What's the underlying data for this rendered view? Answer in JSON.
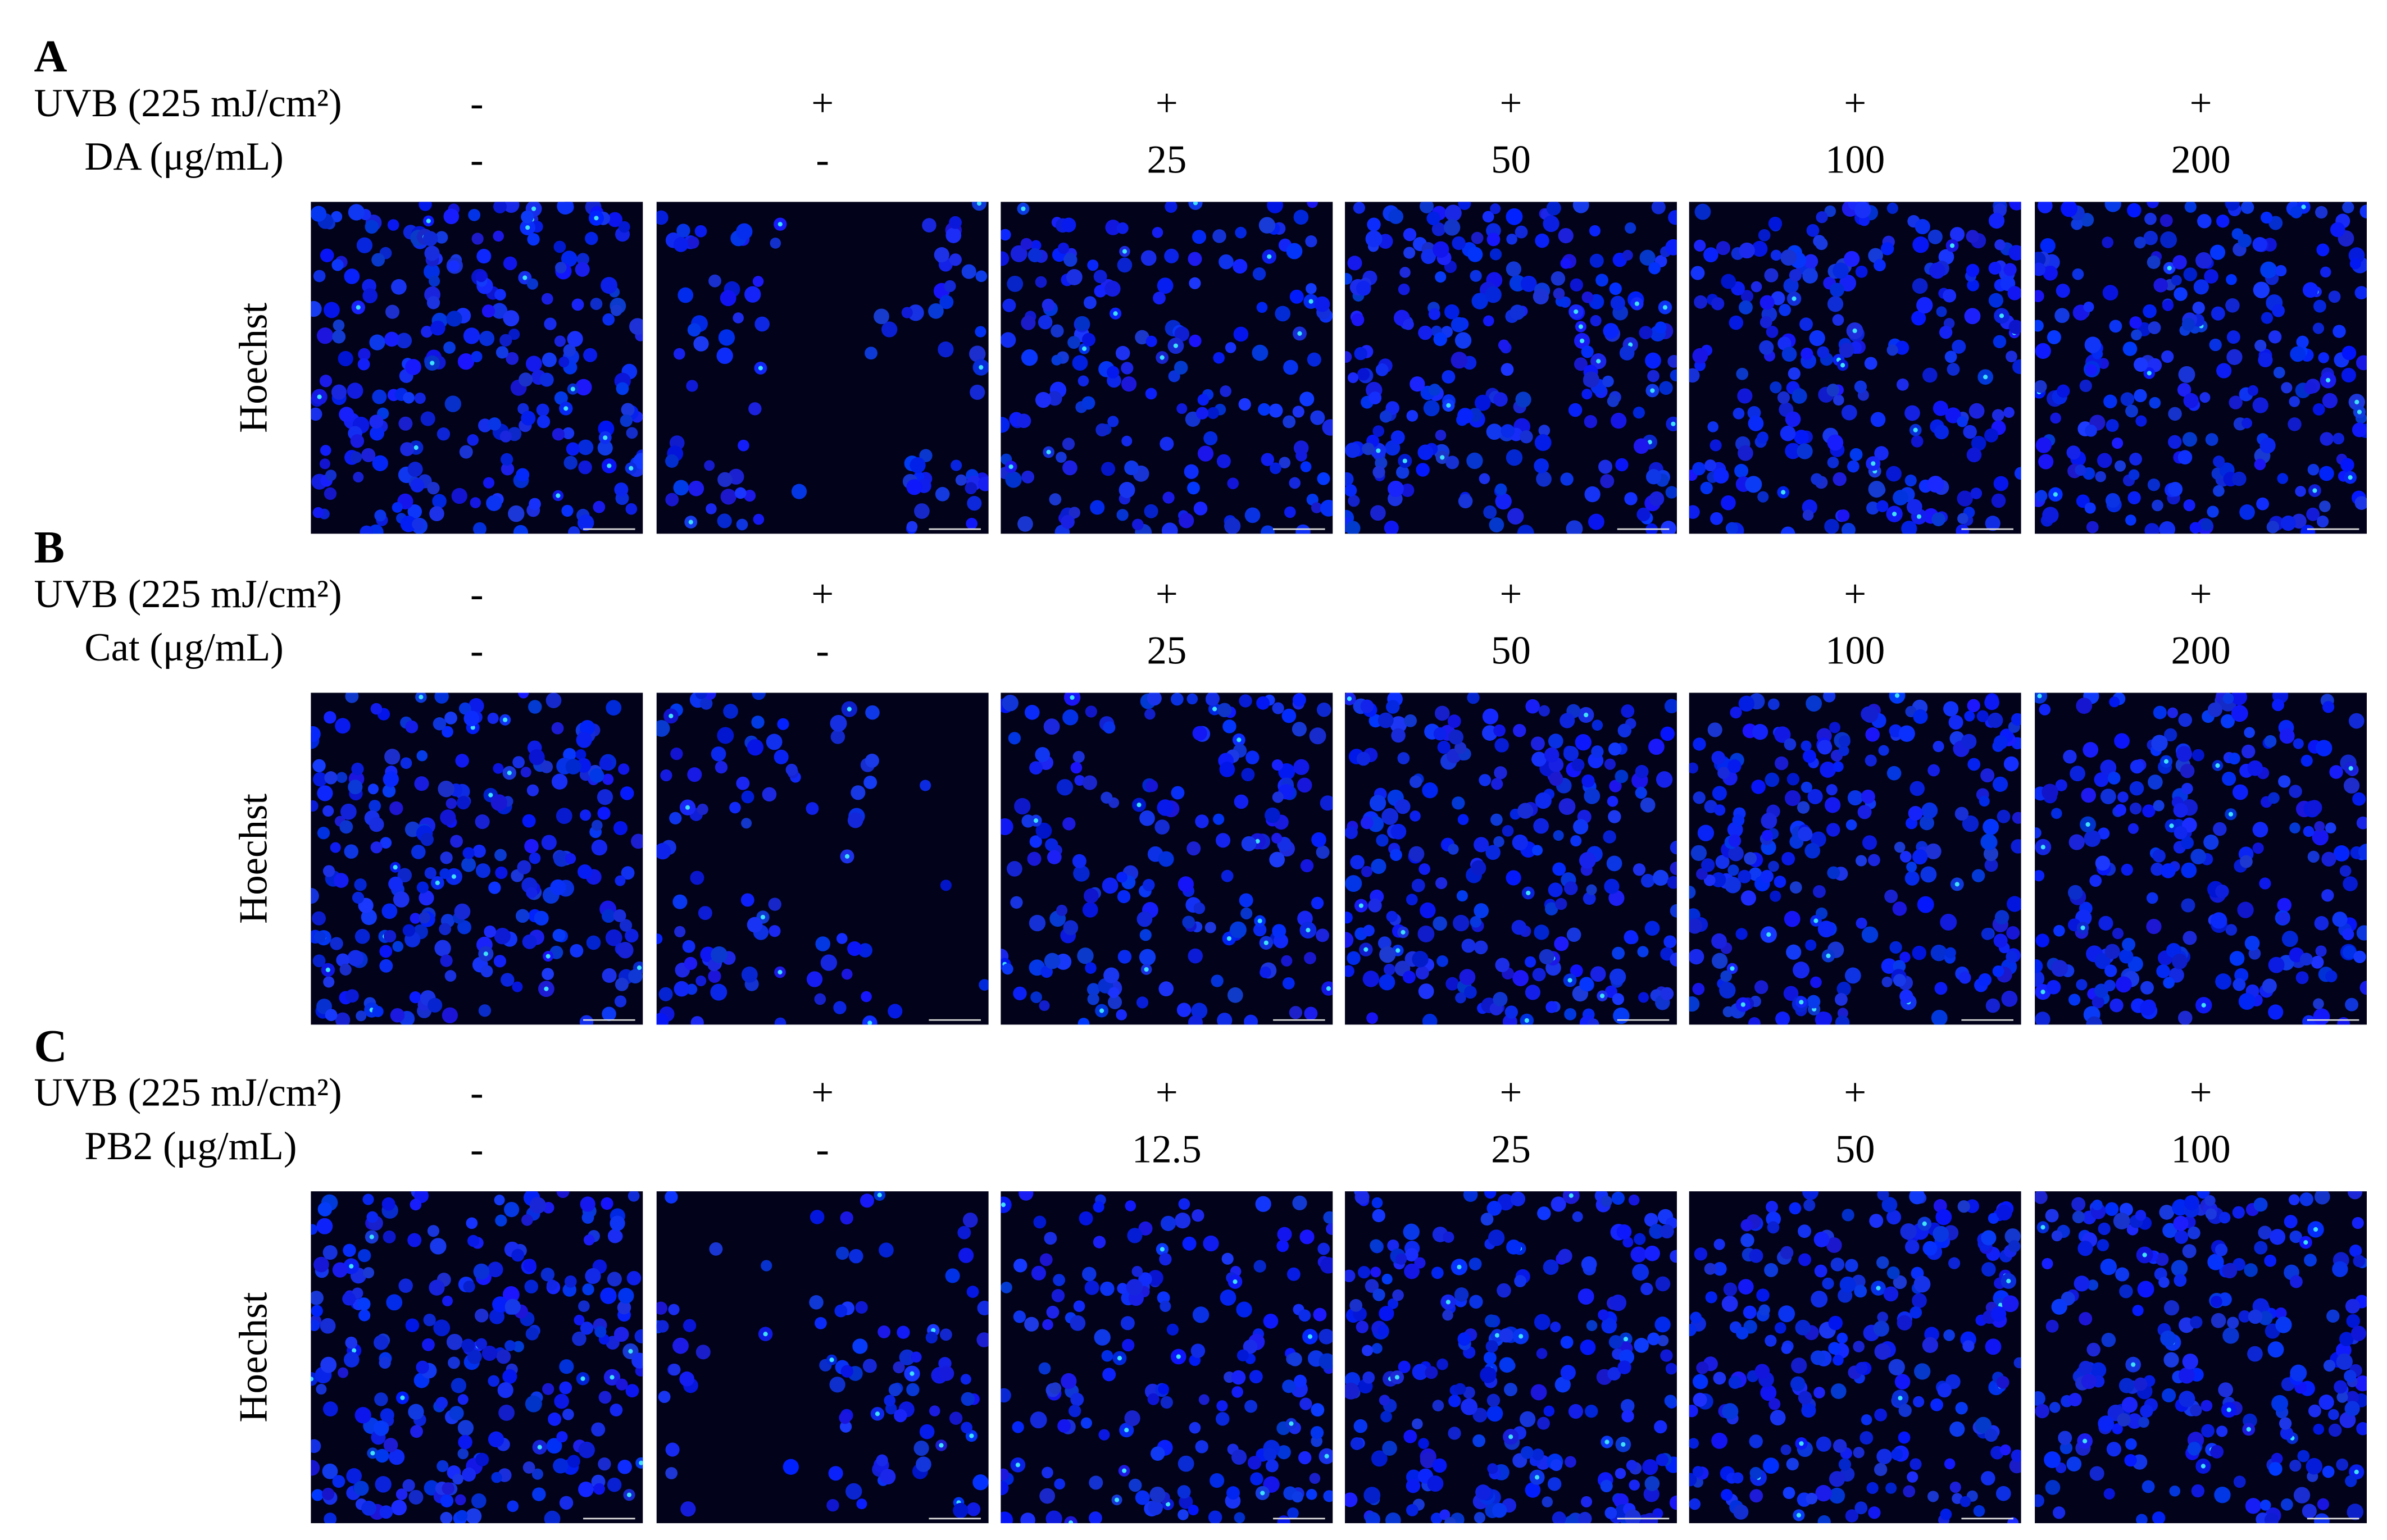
{
  "panels": [
    {
      "label": "A",
      "uvb_label": "UVB (225 mJ/cm²)",
      "uvb": [
        "-",
        "+",
        "+",
        "+",
        "+",
        "+"
      ],
      "treatment_label": "DA (μg/mL)",
      "doses": [
        "-",
        "-",
        25,
        50,
        100,
        200
      ],
      "stain": "Hoechst"
    },
    {
      "label": "B",
      "uvb_label": "UVB (225 mJ/cm²)",
      "uvb": [
        "-",
        "+",
        "+",
        "+",
        "+",
        "+"
      ],
      "treatment_label": "Cat (μg/mL)",
      "doses": [
        "-",
        "-",
        25,
        50,
        100,
        200
      ],
      "stain": "Hoechst"
    },
    {
      "label": "C",
      "uvb_label": "UVB (225 mJ/cm²)",
      "uvb": [
        "-",
        "+",
        "+",
        "+",
        "+",
        "+"
      ],
      "treatment_label": "PB2 (μg/mL)",
      "doses": [
        "-",
        "-",
        12.5,
        25,
        50,
        100
      ],
      "stain": "Hoechst"
    }
  ]
}
